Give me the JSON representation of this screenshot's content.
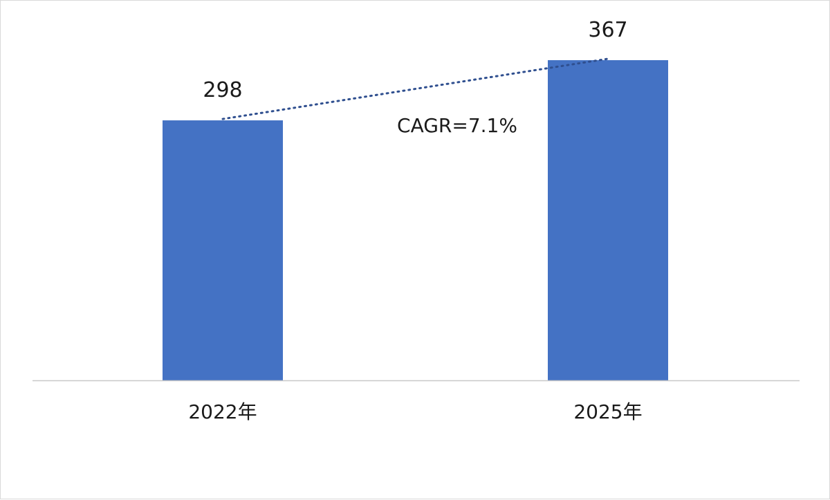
{
  "chart_data": {
    "type": "bar",
    "categories": [
      "2022年",
      "2025年"
    ],
    "values": [
      298,
      367
    ],
    "data_labels": [
      "298",
      "367"
    ],
    "title": "",
    "xlabel": "",
    "ylabel": "",
    "ylim": [
      0,
      367
    ],
    "grid": false,
    "legend": "none",
    "trend_line": {
      "style": "dotted",
      "from": "2022年",
      "to": "2025年",
      "label": "CAGR=7.1%"
    },
    "colors": {
      "bar": "#4472c4",
      "trend": "#2f4f8f",
      "axis": "#c8c8c8",
      "text": "#1a1a1a"
    }
  }
}
